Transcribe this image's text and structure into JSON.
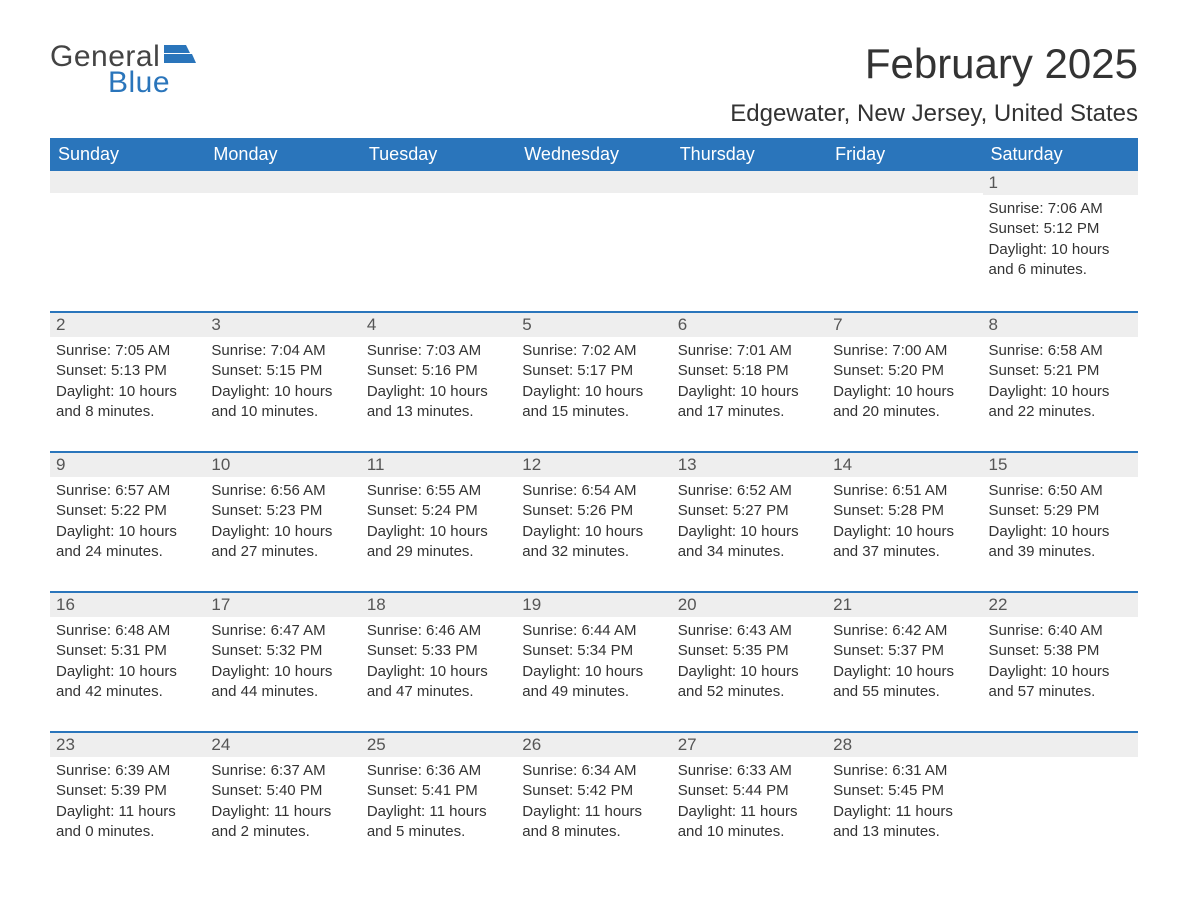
{
  "logo": {
    "general": "General",
    "blue": "Blue",
    "flag_color": "#2a75bb"
  },
  "header": {
    "month_title": "February 2025",
    "location": "Edgewater, New Jersey, United States"
  },
  "colors": {
    "header_bg": "#2a75bb",
    "header_text": "#ffffff",
    "daynum_bg": "#eeeeee",
    "body_text": "#333333",
    "page_bg": "#ffffff"
  },
  "weekdays": [
    "Sunday",
    "Monday",
    "Tuesday",
    "Wednesday",
    "Thursday",
    "Friday",
    "Saturday"
  ],
  "grid": [
    [
      null,
      null,
      null,
      null,
      null,
      null,
      {
        "day": "1",
        "sunrise": "Sunrise: 7:06 AM",
        "sunset": "Sunset: 5:12 PM",
        "daylight": "Daylight: 10 hours and 6 minutes."
      }
    ],
    [
      {
        "day": "2",
        "sunrise": "Sunrise: 7:05 AM",
        "sunset": "Sunset: 5:13 PM",
        "daylight": "Daylight: 10 hours and 8 minutes."
      },
      {
        "day": "3",
        "sunrise": "Sunrise: 7:04 AM",
        "sunset": "Sunset: 5:15 PM",
        "daylight": "Daylight: 10 hours and 10 minutes."
      },
      {
        "day": "4",
        "sunrise": "Sunrise: 7:03 AM",
        "sunset": "Sunset: 5:16 PM",
        "daylight": "Daylight: 10 hours and 13 minutes."
      },
      {
        "day": "5",
        "sunrise": "Sunrise: 7:02 AM",
        "sunset": "Sunset: 5:17 PM",
        "daylight": "Daylight: 10 hours and 15 minutes."
      },
      {
        "day": "6",
        "sunrise": "Sunrise: 7:01 AM",
        "sunset": "Sunset: 5:18 PM",
        "daylight": "Daylight: 10 hours and 17 minutes."
      },
      {
        "day": "7",
        "sunrise": "Sunrise: 7:00 AM",
        "sunset": "Sunset: 5:20 PM",
        "daylight": "Daylight: 10 hours and 20 minutes."
      },
      {
        "day": "8",
        "sunrise": "Sunrise: 6:58 AM",
        "sunset": "Sunset: 5:21 PM",
        "daylight": "Daylight: 10 hours and 22 minutes."
      }
    ],
    [
      {
        "day": "9",
        "sunrise": "Sunrise: 6:57 AM",
        "sunset": "Sunset: 5:22 PM",
        "daylight": "Daylight: 10 hours and 24 minutes."
      },
      {
        "day": "10",
        "sunrise": "Sunrise: 6:56 AM",
        "sunset": "Sunset: 5:23 PM",
        "daylight": "Daylight: 10 hours and 27 minutes."
      },
      {
        "day": "11",
        "sunrise": "Sunrise: 6:55 AM",
        "sunset": "Sunset: 5:24 PM",
        "daylight": "Daylight: 10 hours and 29 minutes."
      },
      {
        "day": "12",
        "sunrise": "Sunrise: 6:54 AM",
        "sunset": "Sunset: 5:26 PM",
        "daylight": "Daylight: 10 hours and 32 minutes."
      },
      {
        "day": "13",
        "sunrise": "Sunrise: 6:52 AM",
        "sunset": "Sunset: 5:27 PM",
        "daylight": "Daylight: 10 hours and 34 minutes."
      },
      {
        "day": "14",
        "sunrise": "Sunrise: 6:51 AM",
        "sunset": "Sunset: 5:28 PM",
        "daylight": "Daylight: 10 hours and 37 minutes."
      },
      {
        "day": "15",
        "sunrise": "Sunrise: 6:50 AM",
        "sunset": "Sunset: 5:29 PM",
        "daylight": "Daylight: 10 hours and 39 minutes."
      }
    ],
    [
      {
        "day": "16",
        "sunrise": "Sunrise: 6:48 AM",
        "sunset": "Sunset: 5:31 PM",
        "daylight": "Daylight: 10 hours and 42 minutes."
      },
      {
        "day": "17",
        "sunrise": "Sunrise: 6:47 AM",
        "sunset": "Sunset: 5:32 PM",
        "daylight": "Daylight: 10 hours and 44 minutes."
      },
      {
        "day": "18",
        "sunrise": "Sunrise: 6:46 AM",
        "sunset": "Sunset: 5:33 PM",
        "daylight": "Daylight: 10 hours and 47 minutes."
      },
      {
        "day": "19",
        "sunrise": "Sunrise: 6:44 AM",
        "sunset": "Sunset: 5:34 PM",
        "daylight": "Daylight: 10 hours and 49 minutes."
      },
      {
        "day": "20",
        "sunrise": "Sunrise: 6:43 AM",
        "sunset": "Sunset: 5:35 PM",
        "daylight": "Daylight: 10 hours and 52 minutes."
      },
      {
        "day": "21",
        "sunrise": "Sunrise: 6:42 AM",
        "sunset": "Sunset: 5:37 PM",
        "daylight": "Daylight: 10 hours and 55 minutes."
      },
      {
        "day": "22",
        "sunrise": "Sunrise: 6:40 AM",
        "sunset": "Sunset: 5:38 PM",
        "daylight": "Daylight: 10 hours and 57 minutes."
      }
    ],
    [
      {
        "day": "23",
        "sunrise": "Sunrise: 6:39 AM",
        "sunset": "Sunset: 5:39 PM",
        "daylight": "Daylight: 11 hours and 0 minutes."
      },
      {
        "day": "24",
        "sunrise": "Sunrise: 6:37 AM",
        "sunset": "Sunset: 5:40 PM",
        "daylight": "Daylight: 11 hours and 2 minutes."
      },
      {
        "day": "25",
        "sunrise": "Sunrise: 6:36 AM",
        "sunset": "Sunset: 5:41 PM",
        "daylight": "Daylight: 11 hours and 5 minutes."
      },
      {
        "day": "26",
        "sunrise": "Sunrise: 6:34 AM",
        "sunset": "Sunset: 5:42 PM",
        "daylight": "Daylight: 11 hours and 8 minutes."
      },
      {
        "day": "27",
        "sunrise": "Sunrise: 6:33 AM",
        "sunset": "Sunset: 5:44 PM",
        "daylight": "Daylight: 11 hours and 10 minutes."
      },
      {
        "day": "28",
        "sunrise": "Sunrise: 6:31 AM",
        "sunset": "Sunset: 5:45 PM",
        "daylight": "Daylight: 11 hours and 13 minutes."
      },
      null
    ]
  ]
}
